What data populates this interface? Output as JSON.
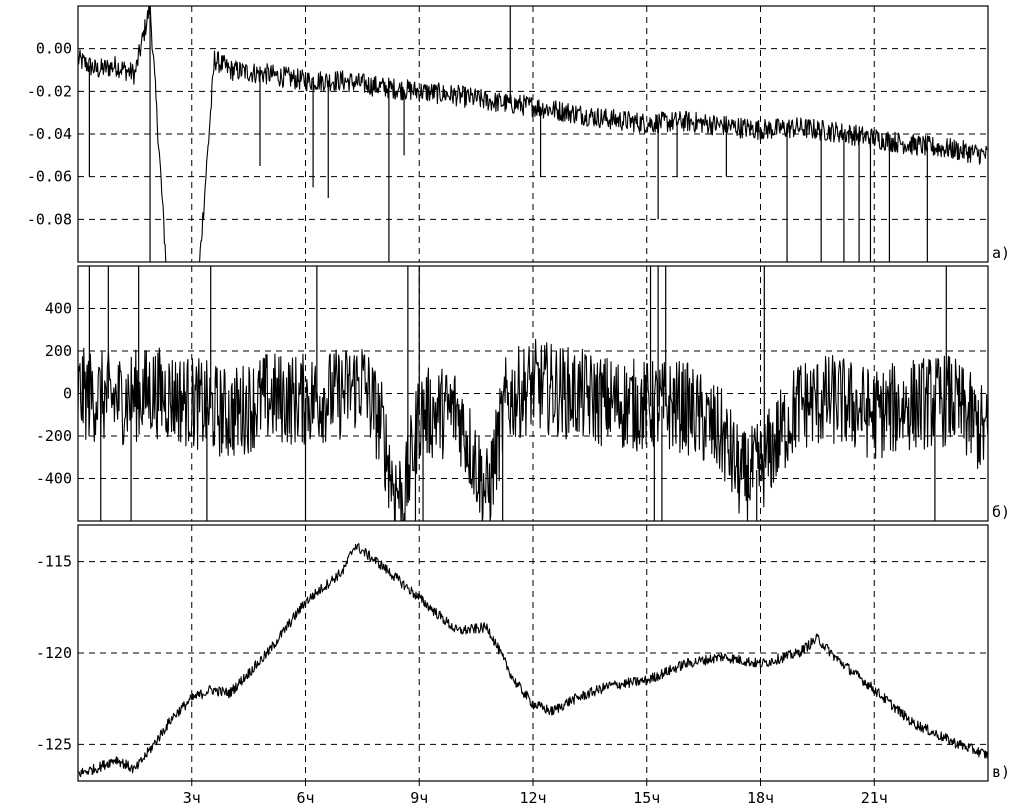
{
  "x_axis": {
    "range": [
      0,
      24
    ],
    "tick_values": [
      3,
      6,
      9,
      12,
      15,
      18,
      21
    ],
    "tick_labels": [
      "3ч",
      "6ч",
      "9ч",
      "12ч",
      "15ч",
      "18ч",
      "21ч"
    ]
  },
  "chart_data": [
    {
      "type": "line",
      "panel_label": "a)",
      "ylim": [
        -0.1,
        0.02
      ],
      "ytick_values": [
        0.0,
        -0.02,
        -0.04,
        -0.06,
        -0.08
      ],
      "ytick_labels": [
        "0.00",
        "-0.02",
        "-0.04",
        "-0.06",
        "-0.08"
      ],
      "grid": true,
      "x": [
        0,
        0.5,
        1.0,
        1.5,
        1.9,
        2.5,
        3.0,
        3.6,
        4.0,
        5.0,
        6.0,
        7.0,
        8.0,
        9.0,
        10.0,
        11.0,
        12.0,
        13.0,
        14.0,
        15.0,
        16.0,
        17.0,
        18.0,
        19.0,
        20.0,
        21.0,
        22.0,
        23.0,
        24.0
      ],
      "values": [
        -0.005,
        -0.01,
        -0.008,
        -0.012,
        0.02,
        -0.15,
        -0.15,
        -0.005,
        -0.01,
        -0.012,
        -0.015,
        -0.015,
        -0.018,
        -0.02,
        -0.022,
        -0.025,
        -0.027,
        -0.03,
        -0.033,
        -0.035,
        -0.034,
        -0.036,
        -0.038,
        -0.037,
        -0.039,
        -0.042,
        -0.045,
        -0.047,
        -0.05
      ],
      "noise": 0.005,
      "spikes": [
        {
          "x": 0.3,
          "y": -0.06
        },
        {
          "x": 1.9,
          "y": -0.12
        },
        {
          "x": 2.5,
          "y": -0.12
        },
        {
          "x": 4.8,
          "y": -0.055
        },
        {
          "x": 6.2,
          "y": -0.065
        },
        {
          "x": 6.6,
          "y": -0.07
        },
        {
          "x": 8.2,
          "y": -0.1
        },
        {
          "x": 8.6,
          "y": -0.05
        },
        {
          "x": 11.4,
          "y": 0.02
        },
        {
          "x": 12.2,
          "y": -0.06
        },
        {
          "x": 15.3,
          "y": -0.08
        },
        {
          "x": 15.8,
          "y": -0.06
        },
        {
          "x": 17.1,
          "y": -0.06
        },
        {
          "x": 18.7,
          "y": -0.1
        },
        {
          "x": 19.6,
          "y": -0.1
        },
        {
          "x": 20.2,
          "y": -0.1
        },
        {
          "x": 20.6,
          "y": -0.1
        },
        {
          "x": 20.9,
          "y": -0.1
        },
        {
          "x": 21.4,
          "y": -0.1
        },
        {
          "x": 22.4,
          "y": -0.1
        }
      ]
    },
    {
      "type": "line",
      "panel_label": "б)",
      "ylim": [
        -600,
        600
      ],
      "ytick_values": [
        400,
        200,
        0,
        -200,
        -400
      ],
      "ytick_labels": [
        "400",
        "200",
        "0",
        "-200",
        "-400"
      ],
      "grid": true,
      "x": [
        0,
        1,
        2,
        3,
        4,
        5,
        6,
        7,
        7.5,
        8,
        8.3,
        8.6,
        9,
        10,
        10.8,
        11.3,
        12,
        13,
        14,
        15,
        16,
        17,
        17.5,
        18,
        19,
        20,
        21,
        22,
        23,
        24
      ],
      "values": [
        0,
        -30,
        10,
        -40,
        -100,
        -20,
        -30,
        0,
        60,
        -150,
        -420,
        -500,
        -100,
        -80,
        -480,
        -30,
        40,
        0,
        -40,
        -60,
        -60,
        -200,
        -400,
        -350,
        -50,
        -30,
        -100,
        -50,
        -30,
        -200
      ],
      "noise": 220,
      "spikes": [
        {
          "x": 0.3,
          "y": 600
        },
        {
          "x": 0.6,
          "y": -600
        },
        {
          "x": 0.8,
          "y": 600
        },
        {
          "x": 1.4,
          "y": -600
        },
        {
          "x": 1.6,
          "y": 600
        },
        {
          "x": 3.4,
          "y": -600
        },
        {
          "x": 3.5,
          "y": 600
        },
        {
          "x": 6.0,
          "y": -600
        },
        {
          "x": 6.3,
          "y": 600
        },
        {
          "x": 8.7,
          "y": 600
        },
        {
          "x": 8.9,
          "y": -600
        },
        {
          "x": 9.0,
          "y": 600
        },
        {
          "x": 9.1,
          "y": -600
        },
        {
          "x": 11.2,
          "y": -600
        },
        {
          "x": 15.1,
          "y": 600
        },
        {
          "x": 15.2,
          "y": -600
        },
        {
          "x": 15.3,
          "y": 600
        },
        {
          "x": 15.4,
          "y": -600
        },
        {
          "x": 15.5,
          "y": 600
        },
        {
          "x": 17.9,
          "y": -600
        },
        {
          "x": 18.1,
          "y": 600
        },
        {
          "x": 22.6,
          "y": -600
        },
        {
          "x": 22.9,
          "y": 600
        }
      ]
    },
    {
      "type": "line",
      "panel_label": "в)",
      "ylim": [
        -127,
        -113
      ],
      "ytick_values": [
        -115,
        -120,
        -125
      ],
      "ytick_labels": [
        "-115",
        "-120",
        "-125"
      ],
      "grid": true,
      "x": [
        0,
        0.5,
        1.0,
        1.5,
        2.0,
        2.5,
        3.0,
        3.5,
        4.0,
        5.0,
        6.0,
        7.0,
        7.3,
        8.0,
        9.0,
        10.0,
        10.8,
        11.5,
        12.0,
        12.5,
        13.0,
        14.0,
        15.0,
        16.0,
        17.0,
        18.0,
        19.0,
        19.5,
        20.0,
        21.0,
        22.0,
        23.0,
        24.0
      ],
      "values": [
        -126.6,
        -126.3,
        -125.8,
        -126.4,
        -125.0,
        -123.5,
        -122.5,
        -122.0,
        -122.2,
        -120.0,
        -117.2,
        -115.5,
        -114.1,
        -115.2,
        -117.0,
        -118.8,
        -118.6,
        -121.5,
        -122.8,
        -123.2,
        -122.6,
        -121.8,
        -121.5,
        -120.6,
        -120.2,
        -120.6,
        -120.0,
        -119.2,
        -120.3,
        -122.0,
        -123.8,
        -124.8,
        -125.6
      ],
      "noise": 0.28,
      "spikes": []
    }
  ]
}
